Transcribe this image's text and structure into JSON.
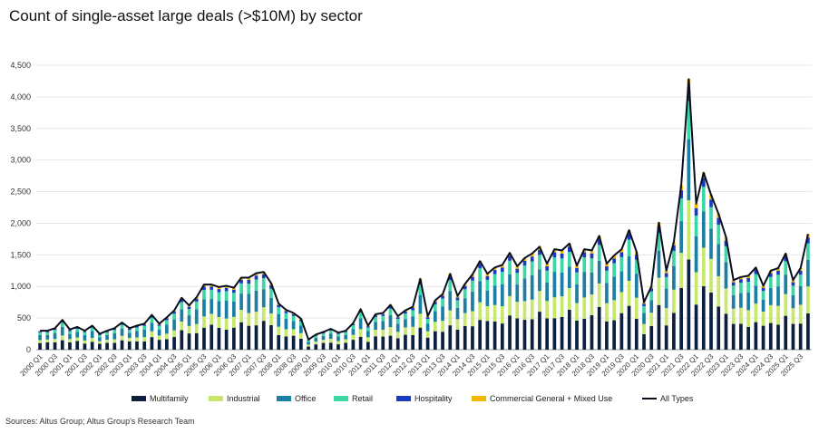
{
  "chart_data": {
    "type": "bar",
    "stacked": true,
    "title": "Count of single-asset large deals (>$10M) by sector",
    "source": "Sources: Altus Group; Altus Group's Research Team",
    "ylim": [
      0,
      4500
    ],
    "yticks": [
      0,
      500,
      1000,
      1500,
      2000,
      2500,
      3000,
      3500,
      4000,
      4500
    ],
    "ytick_labels": [
      "0",
      "500",
      "1,000",
      "1,500",
      "2,000",
      "2,500",
      "3,000",
      "3,500",
      "4,000",
      "4,500"
    ],
    "xtick_labels": [
      "2000 Q1",
      "2000 Q3",
      "2001 Q1",
      "2001 Q3",
      "2002 Q1",
      "2002 Q3",
      "2003 Q1",
      "2003 Q3",
      "2004 Q1",
      "2004 Q3",
      "2005 Q1",
      "2005 Q3",
      "2006 Q1",
      "2006 Q3",
      "2007 Q1",
      "2007 Q3",
      "2008 Q1",
      "2008 Q3",
      "2009 Q1",
      "2009 Q3",
      "2010 Q1",
      "2010 Q3",
      "2011 Q1",
      "2011 Q3",
      "2012 Q1",
      "2012 Q3",
      "2013 Q1",
      "2013 Q3",
      "2014 Q1",
      "2014 Q3",
      "2015 Q1",
      "2015 Q3",
      "2016 Q1",
      "2016 Q3",
      "2017 Q1",
      "2017 Q3",
      "2018 Q1",
      "2018 Q3",
      "2019 Q1",
      "2019 Q3",
      "2020 Q1",
      "2020 Q3",
      "2021 Q1",
      "2021 Q3",
      "2022 Q1",
      "2022 Q3",
      "2023 Q1",
      "2023 Q3",
      "2024 Q1",
      "2024 Q3",
      "2025 Q1",
      "2025 Q3"
    ],
    "totals": [
      300,
      300,
      340,
      470,
      320,
      360,
      300,
      380,
      250,
      300,
      340,
      430,
      340,
      380,
      410,
      550,
      410,
      510,
      620,
      820,
      700,
      830,
      1030,
      1030,
      990,
      1010,
      980,
      1140,
      1140,
      1210,
      1230,
      1050,
      730,
      630,
      580,
      490,
      160,
      240,
      280,
      330,
      270,
      300,
      420,
      640,
      380,
      560,
      580,
      710,
      530,
      620,
      680,
      1120,
      530,
      780,
      880,
      1200,
      850,
      1040,
      1190,
      1400,
      1200,
      1300,
      1340,
      1530,
      1320,
      1450,
      1520,
      1630,
      1360,
      1590,
      1570,
      1680,
      1330,
      1590,
      1570,
      1800,
      1360,
      1490,
      1590,
      1890,
      1550,
      750,
      1000,
      2010,
      1250,
      1700,
      2600,
      4280,
      2310,
      2800,
      2450,
      2150,
      1780,
      1100,
      1150,
      1170,
      1300,
      1010,
      1250,
      1290,
      1520,
      1100,
      1290,
      1830
    ],
    "series": [
      {
        "name": "Multifamily",
        "color": "#0b1f3f",
        "share": 0.34
      },
      {
        "name": "Industrial",
        "color": "#c8e86c",
        "share": 0.18
      },
      {
        "name": "Office",
        "color": "#1b7fa3",
        "share": 0.26
      },
      {
        "name": "Retail",
        "color": "#3dd6a5",
        "share": 0.14
      },
      {
        "name": "Hospitality",
        "color": "#1a3bbf",
        "share": 0.05
      },
      {
        "name": "Commercial General + Mixed Use",
        "color": "#f2b800",
        "share": 0.03
      }
    ],
    "line_series": {
      "name": "All Types",
      "color": "#0a0f1f"
    }
  }
}
